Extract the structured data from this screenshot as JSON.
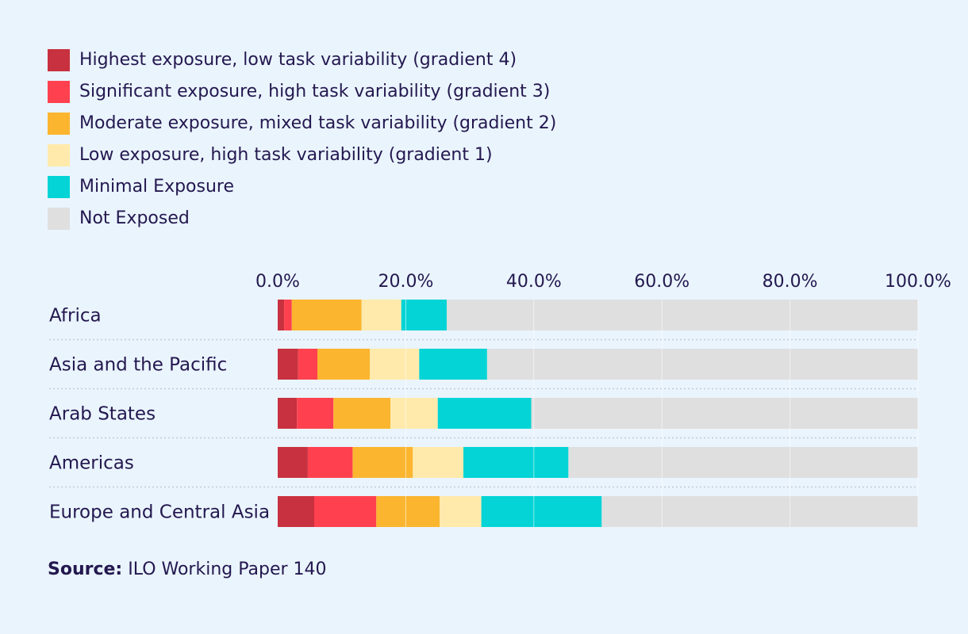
{
  "chart_data": {
    "type": "bar",
    "orientation": "horizontal",
    "stacked": true,
    "categories": [
      "Africa",
      "Asia and the Pacific",
      "Arab States",
      "Americas",
      "Europe and Central Asia"
    ],
    "series": [
      {
        "name": "Highest exposure, low task variability (gradient 4)",
        "color": "#c8313f",
        "values": [
          1.0,
          3.2,
          3.0,
          4.7,
          5.7
        ]
      },
      {
        "name": "Significant exposure, high task variability (gradient 3)",
        "color": "#ff414f",
        "values": [
          1.2,
          3.0,
          5.7,
          7.0,
          9.7
        ]
      },
      {
        "name": "Moderate exposure, mixed task variability (gradient 2)",
        "color": "#fbb52f",
        "values": [
          10.9,
          8.2,
          8.9,
          9.4,
          9.9
        ]
      },
      {
        "name": "Low exposure, high task variability (gradient 1)",
        "color": "#ffeaab",
        "values": [
          6.2,
          7.7,
          7.4,
          7.9,
          6.5
        ]
      },
      {
        "name": "Minimal Exposure",
        "color": "#05d4d6",
        "values": [
          7.1,
          10.6,
          14.6,
          16.4,
          18.8
        ]
      },
      {
        "name": "Not Exposed",
        "color": "#dfdfdf",
        "values": [
          73.6,
          67.3,
          60.4,
          54.6,
          49.4
        ]
      }
    ],
    "xlim": [
      0,
      100
    ],
    "xticks": [
      "0.0%",
      "20.0%",
      "40.0%",
      "60.0%",
      "80.0%",
      "100.0%"
    ],
    "legend_position": "top-left",
    "grid": true
  },
  "source": {
    "label": "Source:",
    "text": " ILO Working Paper 140"
  }
}
